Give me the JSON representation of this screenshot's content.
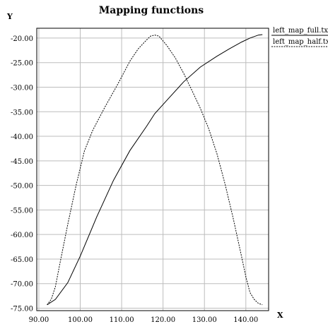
{
  "chart_data": {
    "type": "line",
    "title": "Mapping functions",
    "xlabel": "X",
    "ylabel": "Y",
    "xlim": [
      89.5,
      145.5
    ],
    "ylim": [
      -75.5,
      -18.0
    ],
    "grid": true,
    "legend": "top-right",
    "x_ticks": [
      90,
      100,
      110,
      120,
      130,
      140
    ],
    "x_tick_labels": [
      "90.00",
      "100.00",
      "110.00",
      "120.00",
      "130.00",
      "140.00"
    ],
    "y_ticks": [
      -20,
      -25,
      -30,
      -35,
      -40,
      -45,
      -50,
      -55,
      -60,
      -65,
      -70,
      -75
    ],
    "y_tick_labels": [
      "-20.00",
      "-25.00",
      "-30.00",
      "-35.00",
      "-40.00",
      "-45.00",
      "-50.00",
      "-55.00",
      "-60.00",
      "-65.00",
      "-70.00",
      "-75.00"
    ],
    "series": [
      {
        "name": "left_map_full.txt",
        "style": "solid",
        "color": "#000000",
        "x": [
          92,
          94,
          97,
          100,
          104,
          108,
          112,
          116,
          118,
          121,
          125,
          129,
          133,
          136,
          139,
          141,
          143,
          144
        ],
        "y": [
          -74.3,
          -73.2,
          -69.8,
          -64.4,
          -56.4,
          -49.0,
          -42.9,
          -38.0,
          -35.4,
          -32.6,
          -28.9,
          -25.9,
          -23.7,
          -22.2,
          -20.8,
          -20.0,
          -19.4,
          -19.3
        ]
      },
      {
        "name": "left_map_half.txt",
        "style": "dotted",
        "color": "#000000",
        "x": [
          92,
          93,
          94,
          95,
          97,
          99,
          101,
          103,
          106,
          109,
          112,
          114,
          116,
          117,
          118,
          119,
          121,
          123,
          125,
          127,
          129,
          131,
          133,
          135,
          137,
          139,
          140,
          141,
          142,
          143,
          144
        ],
        "y": [
          -74.3,
          -73.2,
          -70.6,
          -66.3,
          -57.9,
          -50.0,
          -43.0,
          -38.8,
          -34.0,
          -29.5,
          -24.7,
          -22.2,
          -20.4,
          -19.6,
          -19.4,
          -19.6,
          -21.6,
          -24.1,
          -27.2,
          -30.7,
          -34.3,
          -38.4,
          -43.5,
          -49.8,
          -56.9,
          -64.6,
          -68.6,
          -71.8,
          -73.2,
          -74.0,
          -74.3
        ]
      }
    ]
  }
}
